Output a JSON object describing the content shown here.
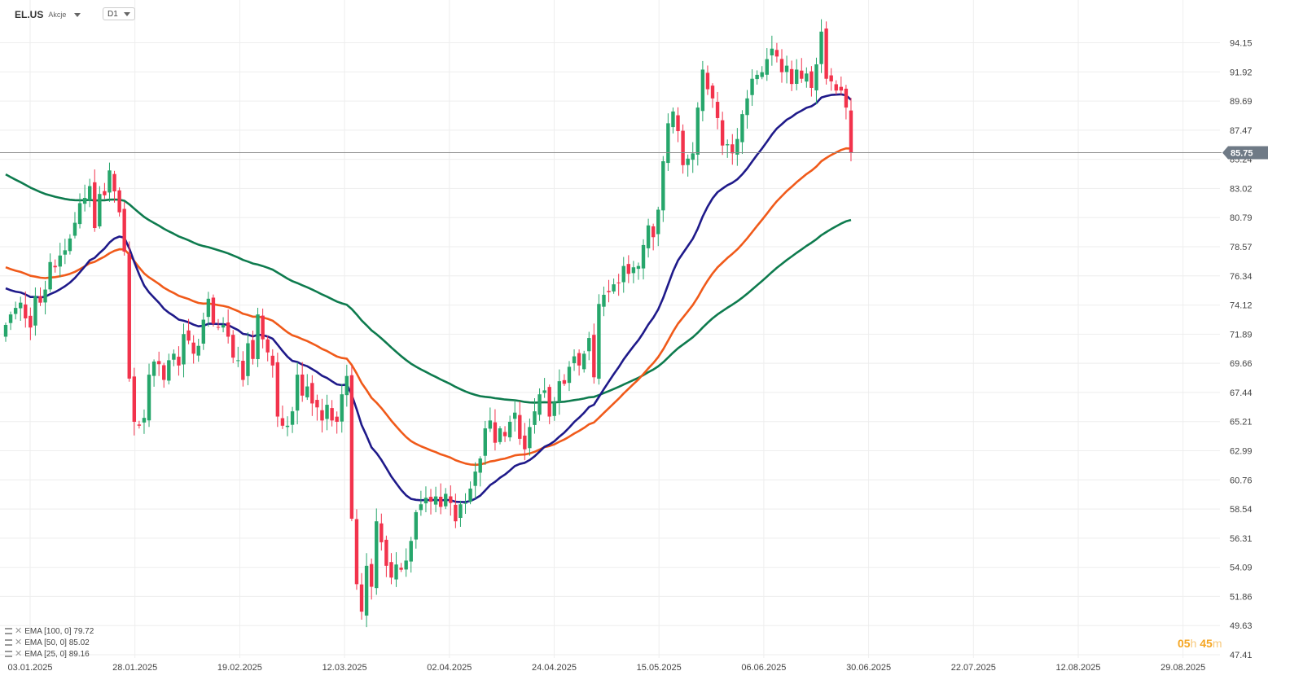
{
  "header": {
    "symbol": "EL.US",
    "asset_type": "Akcje",
    "timeframe": "D1"
  },
  "timer": {
    "hours": "05",
    "hours_unit": "h",
    "minutes": "45",
    "minutes_unit": "m"
  },
  "legend": [
    {
      "label": "EMA [100, 0] 79.72",
      "color": "#0e7b4e"
    },
    {
      "label": "EMA [50, 0] 85.02",
      "color": "#f05a1a"
    },
    {
      "label": "EMA [25, 0] 89.16",
      "color": "#1f1a8a"
    }
  ],
  "chart_data": {
    "type": "candlestick",
    "title": "",
    "y_ticks": [
      "94.15",
      "91.92",
      "89.69",
      "87.47",
      "85.24",
      "83.02",
      "80.79",
      "78.57",
      "76.34",
      "74.12",
      "71.89",
      "69.66",
      "67.44",
      "65.21",
      "62.99",
      "60.76",
      "58.54",
      "56.31",
      "54.09",
      "51.86",
      "49.63",
      "47.41"
    ],
    "ylim": [
      47.41,
      94.15
    ],
    "x_ticks": [
      "03.01.2025",
      "28.01.2025",
      "19.02.2025",
      "12.03.2025",
      "02.04.2025",
      "24.04.2025",
      "15.05.2025",
      "06.06.2025",
      "30.06.2025",
      "22.07.2025",
      "12.08.2025",
      "29.08.2025"
    ],
    "current_price": "85.75",
    "grid": true,
    "colors": {
      "up": "#26a66b",
      "down": "#f2334c",
      "grid": "#eeeeee",
      "price_line": "#888888"
    },
    "close_series": [
      72.6,
      73.4,
      73.9,
      74.3,
      73.1,
      72.4,
      74.8,
      74.3,
      75.3,
      77.4,
      77.0,
      77.9,
      78.3,
      79.2,
      80.4,
      81.9,
      82.3,
      83.2,
      80.0,
      82.6,
      82.5,
      84.4,
      82.8,
      81.2,
      78.2,
      68.5,
      65.2,
      64.9,
      65.5,
      68.8,
      69.8,
      69.6,
      68.4,
      69.9,
      70.4,
      69.5,
      71.9,
      71.4,
      70.4,
      71.0,
      73.0,
      74.6,
      72.7,
      72.4,
      72.6,
      71.7,
      70.1,
      69.9,
      68.4,
      71.2,
      70.0,
      73.4,
      71.5,
      70.5,
      69.5,
      65.6,
      64.9,
      64.9,
      66.0,
      68.8,
      67.2,
      67.9,
      66.6,
      66.3,
      65.3,
      66.5,
      65.3,
      65.2,
      67.3,
      68.7,
      57.8,
      52.8,
      50.7,
      54.2,
      52.6,
      57.6,
      56.0,
      54.2,
      53.3,
      54.3,
      53.9,
      54.6,
      56.1,
      58.3,
      58.9,
      59.4,
      59.1,
      59.5,
      58.7,
      59.7,
      59.0,
      57.6,
      58.9,
      59.0,
      60.1,
      61.4,
      62.4,
      64.7,
      65.3,
      63.6,
      64.7,
      64.1,
      65.2,
      65.9,
      63.9,
      63.1,
      64.8,
      66.0,
      67.3,
      67.6,
      65.6,
      66.7,
      68.3,
      68.1,
      69.4,
      70.2,
      69.5,
      70.4,
      71.6,
      68.6,
      74.2,
      74.9,
      75.1,
      75.7,
      75.8,
      77.1,
      76.5,
      77.0,
      77.1,
      78.7,
      80.2,
      79.3,
      81.4,
      85.1,
      88.0,
      88.9,
      87.4,
      84.8,
      85.3,
      85.7,
      89.2,
      92.1,
      90.6,
      89.9,
      88.4,
      86.3,
      86.4,
      85.7,
      86.8,
      88.7,
      89.9,
      91.4,
      91.7,
      91.9,
      92.9,
      93.7,
      93.1,
      91.9,
      92.4,
      91.0,
      92.1,
      91.4,
      91.8,
      90.7,
      92.5,
      95.0,
      91.4,
      91.2,
      90.5,
      90.5,
      89.2,
      85.75
    ],
    "ema_series": [
      {
        "name": "EMA [100, 0]",
        "period": 100,
        "color": "#0e7b4e",
        "value": "79.72",
        "seed": 84.1
      },
      {
        "name": "EMA [50, 0]",
        "period": 50,
        "color": "#f05a1a",
        "value": "85.02",
        "seed": 77.0
      },
      {
        "name": "EMA [25, 0]",
        "period": 25,
        "color": "#1f1a8a",
        "value": "89.16",
        "seed": 75.4
      }
    ]
  }
}
